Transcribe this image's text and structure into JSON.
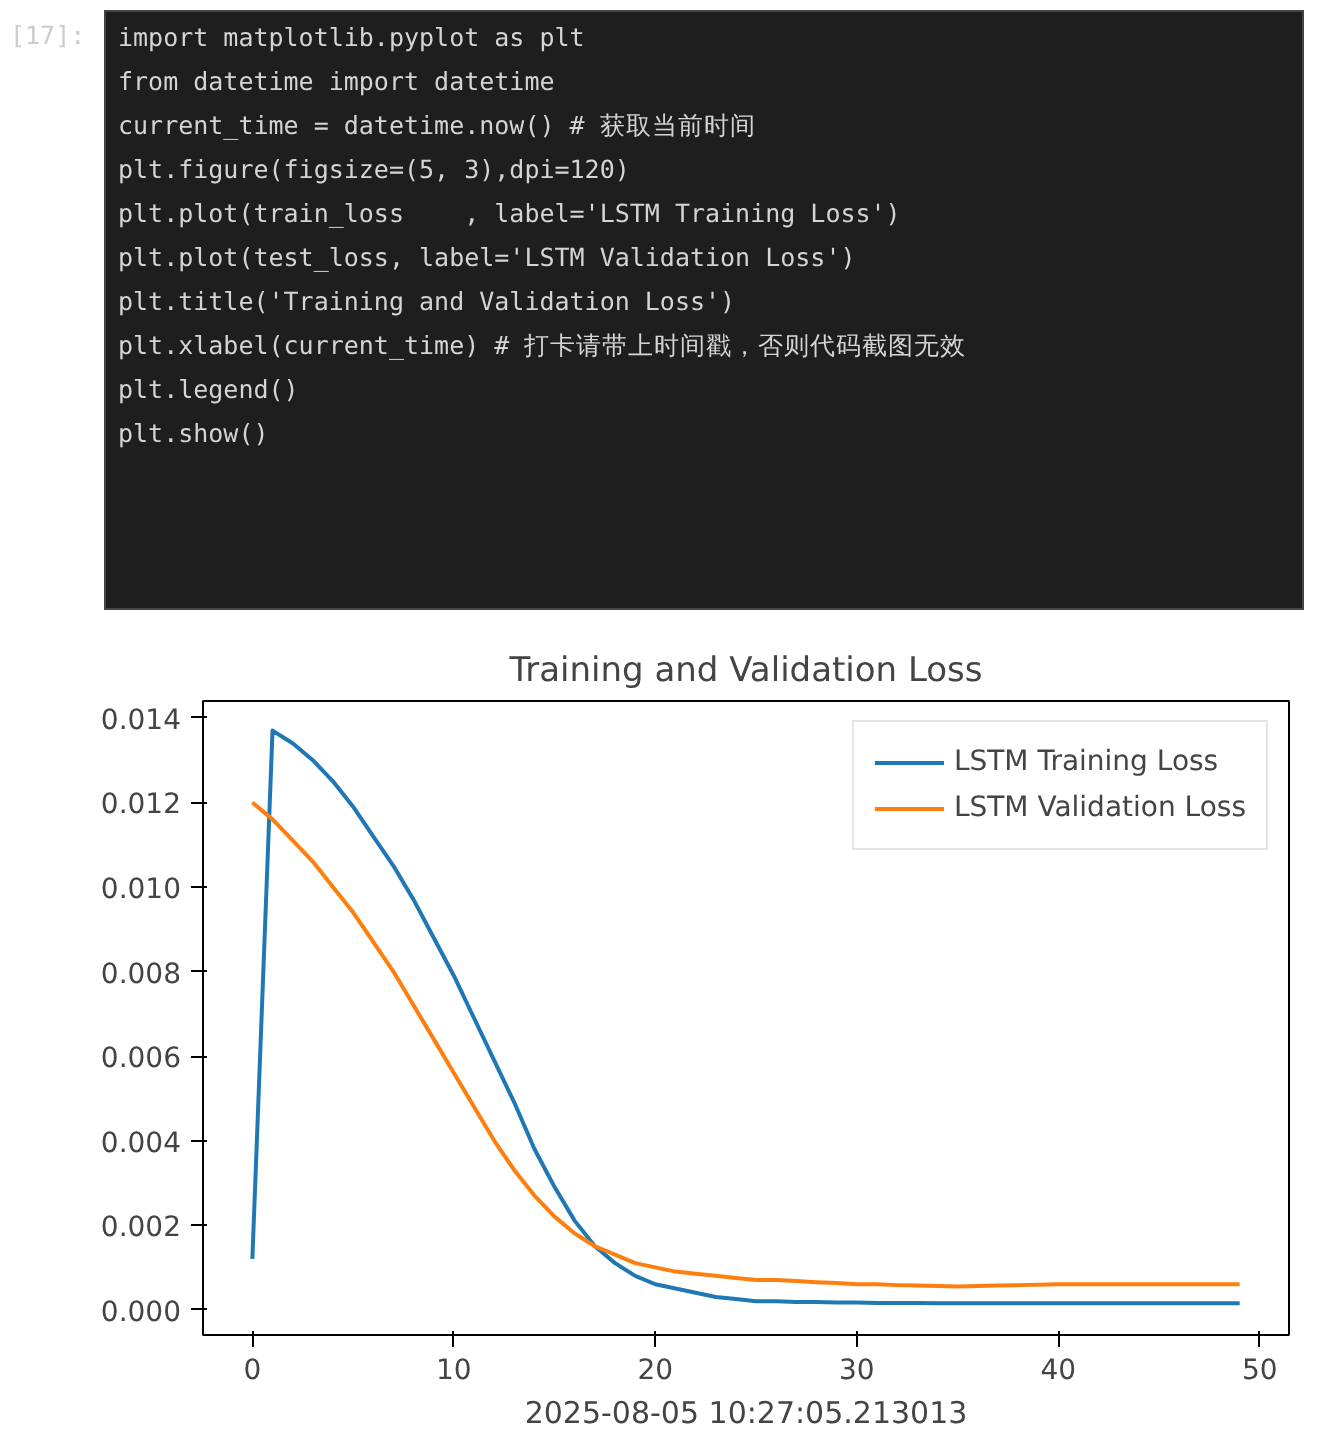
{
  "chart_data": {
    "type": "line",
    "title": "Training and Validation Loss",
    "xlabel": "2025-08-05 10:27:05.213013",
    "annotations": [
      "[17]:",
      "import matplotlib.pyplot as plt",
      "from datetime import datetime",
      "current_time = datetime.now() # 获取当前时间",
      "plt.figure(figsize=(5, 3),dpi=120)",
      "plt.plot(train_loss    , label='LSTM Training Loss')",
      "plt.plot(test_loss, label='LSTM Validation Loss')",
      "plt.title('Training and Validation Loss')",
      "plt.xlabel(current_time) # 打卡请带上时间戳，否则代码截图无效",
      "plt.legend()",
      "plt.show()"
    ],
    "x": [
      0,
      1,
      2,
      3,
      4,
      5,
      6,
      7,
      8,
      9,
      10,
      11,
      12,
      13,
      14,
      15,
      16,
      17,
      18,
      19,
      20,
      21,
      22,
      23,
      24,
      25,
      26,
      27,
      28,
      29,
      30,
      31,
      32,
      33,
      34,
      35,
      36,
      37,
      38,
      39,
      40,
      41,
      42,
      43,
      44,
      45,
      46,
      47,
      48,
      49
    ],
    "series": [
      {
        "name": "LSTM Training Loss",
        "color": "#1f77b4",
        "values": [
          0.0012,
          0.0137,
          0.0134,
          0.013,
          0.0125,
          0.0119,
          0.0112,
          0.0105,
          0.0097,
          0.0088,
          0.0079,
          0.0069,
          0.0059,
          0.0049,
          0.0038,
          0.0029,
          0.0021,
          0.0015,
          0.0011,
          0.0008,
          0.0006,
          0.0005,
          0.0004,
          0.0003,
          0.00025,
          0.0002,
          0.0002,
          0.00018,
          0.00018,
          0.00017,
          0.00017,
          0.00016,
          0.00016,
          0.00016,
          0.00015,
          0.00015,
          0.00015,
          0.00015,
          0.00015,
          0.00015,
          0.00015,
          0.00015,
          0.00015,
          0.00015,
          0.00015,
          0.00015,
          0.00015,
          0.00015,
          0.00015,
          0.00015
        ]
      },
      {
        "name": "LSTM Validation Loss",
        "color": "#ff7f0e",
        "values": [
          0.012,
          0.0116,
          0.0111,
          0.0106,
          0.01,
          0.0094,
          0.0087,
          0.008,
          0.0072,
          0.0064,
          0.0056,
          0.0048,
          0.004,
          0.0033,
          0.0027,
          0.0022,
          0.0018,
          0.0015,
          0.0013,
          0.0011,
          0.001,
          0.0009,
          0.00085,
          0.0008,
          0.00075,
          0.0007,
          0.0007,
          0.00068,
          0.00065,
          0.00063,
          0.0006,
          0.0006,
          0.00058,
          0.00057,
          0.00056,
          0.00055,
          0.00056,
          0.00057,
          0.00058,
          0.00059,
          0.0006,
          0.0006,
          0.0006,
          0.0006,
          0.0006,
          0.0006,
          0.0006,
          0.0006,
          0.0006,
          0.0006
        ]
      }
    ],
    "xlim": [
      -2.45,
      51.45
    ],
    "xticks": [
      0,
      10,
      20,
      30,
      40,
      50
    ],
    "ylim": [
      -0.0006,
      0.0144
    ],
    "yticks": [
      {
        "value": 0,
        "label": "0.000"
      },
      {
        "value": 0.002,
        "label": "0.002"
      },
      {
        "value": 0.004,
        "label": "0.004"
      },
      {
        "value": 0.006,
        "label": "0.006"
      },
      {
        "value": 0.008,
        "label": "0.008"
      },
      {
        "value": 0.01,
        "label": "0.010"
      },
      {
        "value": 0.012,
        "label": "0.012"
      },
      {
        "value": 0.014,
        "label": "0.014"
      }
    ],
    "legend": "top right",
    "grid": false,
    "marker": "none",
    "line_style": "solid"
  }
}
